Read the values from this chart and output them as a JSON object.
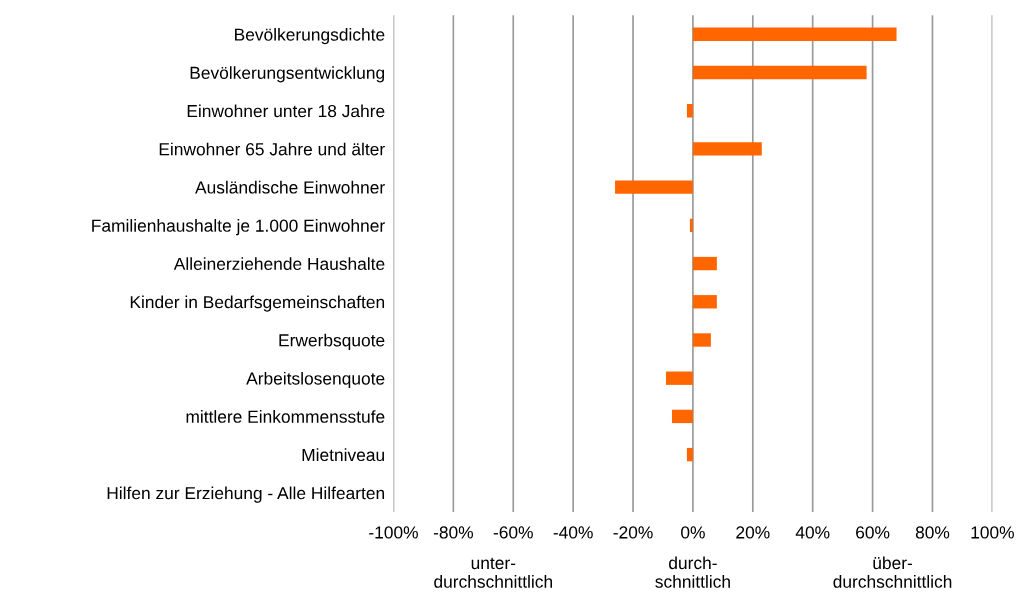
{
  "chart_data": {
    "type": "bar",
    "orientation": "horizontal",
    "categories": [
      "Bevölkerungsdichte",
      "Bevölkerungsentwicklung",
      "Einwohner unter 18 Jahre",
      "Einwohner 65 Jahre und älter",
      "Ausländische Einwohner",
      "Familienhaushalte je 1.000 Einwohner",
      "Alleinerziehende Haushalte",
      "Kinder in Bedarfsgemeinschaften",
      "Erwerbsquote",
      "Arbeitslosenquote",
      "mittlere Einkommensstufe",
      "Mietniveau",
      "Hilfen zur Erziehung - Alle Hilfearten"
    ],
    "values": [
      68,
      58,
      -2,
      23,
      -26,
      -1,
      8,
      8,
      6,
      -9,
      -7,
      -2,
      null
    ],
    "color": "#ff6600",
    "xlim": [
      -100,
      100
    ],
    "xticks": [
      {
        "value": -100,
        "label": "-100%"
      },
      {
        "value": -80,
        "label": "-80%"
      },
      {
        "value": -60,
        "label": "-60%"
      },
      {
        "value": -40,
        "label": "-40%"
      },
      {
        "value": -20,
        "label": "-20%"
      },
      {
        "value": 0,
        "label": "0%"
      },
      {
        "value": 20,
        "label": "20%"
      },
      {
        "value": 40,
        "label": "40%"
      },
      {
        "value": 60,
        "label": "60%"
      },
      {
        "value": 80,
        "label": "80%"
      },
      {
        "value": 100,
        "label": "100%"
      }
    ],
    "grid": "x",
    "annotations": [
      "unter-\ndurchschnittlich",
      "durch-\nschnittlich",
      "über-\ndurchschnittlich"
    ]
  }
}
